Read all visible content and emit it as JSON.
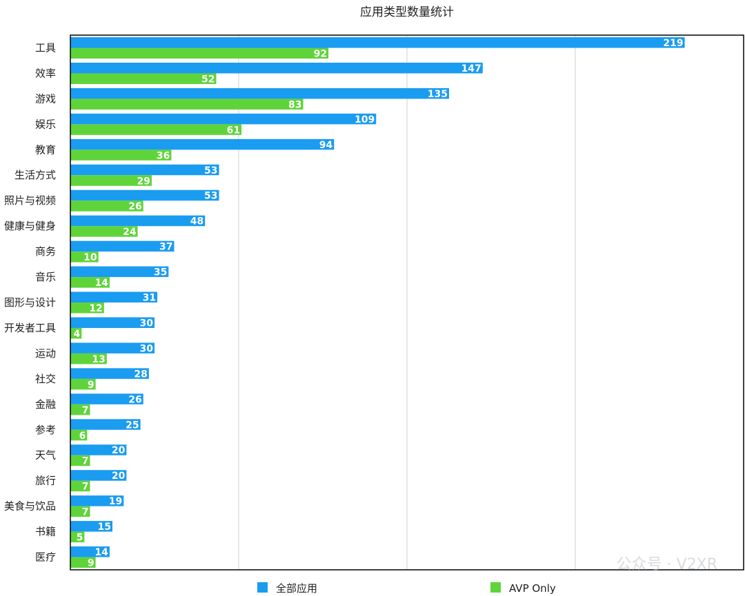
{
  "chart_data": {
    "type": "bar",
    "orientation": "horizontal",
    "title": "应用类型数量统计",
    "categories": [
      "工具",
      "效率",
      "游戏",
      "娱乐",
      "教育",
      "生活方式",
      "照片与视频",
      "健康与健身",
      "商务",
      "音乐",
      "图形与设计",
      "开发者工具",
      "运动",
      "社交",
      "金融",
      "参考",
      "天气",
      "旅行",
      "美食与饮品",
      "书籍",
      "医疗"
    ],
    "series": [
      {
        "name": "全部应用",
        "color": "#1a9cf0",
        "values": [
          219,
          147,
          135,
          109,
          94,
          53,
          53,
          48,
          37,
          35,
          31,
          30,
          30,
          28,
          26,
          25,
          20,
          20,
          19,
          15,
          14
        ]
      },
      {
        "name": "AVP Only",
        "color": "#5fd43a",
        "values": [
          92,
          52,
          83,
          61,
          36,
          29,
          26,
          24,
          10,
          14,
          12,
          4,
          13,
          9,
          7,
          6,
          7,
          7,
          7,
          5,
          9
        ]
      }
    ],
    "xlim": [
      0,
      240
    ],
    "grid": true,
    "legend_position": "bottom",
    "data_labels": true
  },
  "watermark": {
    "text": "公众号 · V2XR"
  }
}
